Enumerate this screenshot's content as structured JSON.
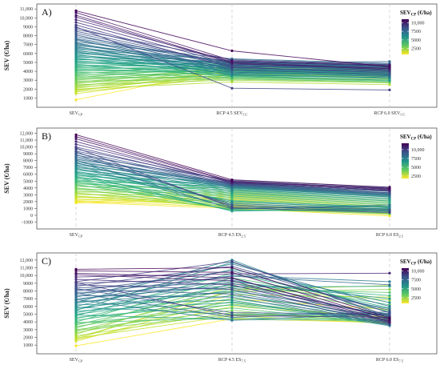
{
  "chart_data": [
    {
      "type": "line",
      "panel_label": "A)",
      "ylabel": "SEV (€/ha)",
      "x_categories": [
        {
          "main": "SEV",
          "sub": "CP",
          "over": false
        },
        {
          "main": "RCP 4.5 ",
          "mainOver": "SEV",
          "sub": "CC",
          "over": true
        },
        {
          "main": "RCP 6.0 ",
          "mainOver": "SEV",
          "sub": "CC",
          "over": true
        }
      ],
      "yticks": [
        1000,
        2000,
        3000,
        4000,
        5000,
        6000,
        7000,
        8000,
        9000,
        10000,
        11000
      ],
      "ytick_labels": [
        "1000",
        "2000",
        "3000",
        "4000",
        "5000",
        "6000",
        "7000",
        "8000",
        "9000",
        "10,000",
        "11,000"
      ],
      "ylim": [
        500,
        11200
      ],
      "legend": {
        "title_main": "SEV",
        "title_sub": "CP",
        "title_unit": " (€/ha)",
        "ticks": [
          10000,
          7500,
          5000,
          2500
        ],
        "tick_labels": [
          "10,000",
          "7500",
          "5000",
          "2500"
        ],
        "range": [
          800,
          11000
        ],
        "position": "top-right"
      },
      "series": [
        [
          10800,
          6300,
          4500
        ],
        [
          10600,
          5200,
          4700
        ],
        [
          10300,
          5000,
          4300
        ],
        [
          10100,
          4900,
          4200
        ],
        [
          9800,
          5100,
          4600
        ],
        [
          9500,
          4800,
          4400
        ],
        [
          9200,
          4400,
          4000
        ],
        [
          9000,
          2100,
          1900
        ],
        [
          8900,
          4600,
          4100
        ],
        [
          8700,
          5300,
          4800
        ],
        [
          8500,
          4700,
          4300
        ],
        [
          8300,
          4500,
          3800
        ],
        [
          8100,
          4200,
          3600
        ],
        [
          7900,
          5000,
          4500
        ],
        [
          7700,
          4900,
          5100
        ],
        [
          7600,
          4300,
          3900
        ],
        [
          7500,
          4100,
          3700
        ],
        [
          7300,
          5400,
          4900
        ],
        [
          7200,
          3900,
          3400
        ],
        [
          7100,
          4600,
          4200
        ],
        [
          7000,
          4400,
          4800
        ],
        [
          6900,
          5100,
          4600
        ],
        [
          6800,
          3800,
          3500
        ],
        [
          6700,
          4700,
          4300
        ],
        [
          6600,
          4200,
          3800
        ],
        [
          6500,
          5200,
          4700
        ],
        [
          6400,
          3600,
          3300
        ],
        [
          6300,
          4800,
          4500
        ],
        [
          6200,
          4000,
          3600
        ],
        [
          6100,
          4400,
          4000
        ],
        [
          6000,
          5000,
          4600
        ],
        [
          5900,
          3700,
          3200
        ],
        [
          5800,
          4600,
          4200
        ],
        [
          5700,
          4200,
          3900
        ],
        [
          5600,
          4900,
          4500
        ],
        [
          5500,
          3500,
          3000
        ],
        [
          5400,
          4300,
          4000
        ],
        [
          5300,
          5100,
          4600
        ],
        [
          5200,
          3900,
          3600
        ],
        [
          5100,
          4600,
          4300
        ],
        [
          5000,
          4100,
          3700
        ],
        [
          4900,
          4800,
          4400
        ],
        [
          4800,
          3400,
          3000
        ],
        [
          4700,
          4400,
          4100
        ],
        [
          4600,
          3800,
          3500
        ],
        [
          4500,
          5000,
          4700
        ],
        [
          4400,
          4200,
          3900
        ],
        [
          4300,
          3600,
          3200
        ],
        [
          4200,
          4700,
          4400
        ],
        [
          4100,
          3900,
          3700
        ],
        [
          4000,
          4500,
          4200
        ],
        [
          3900,
          3300,
          2900
        ],
        [
          3800,
          4100,
          3800
        ],
        [
          3700,
          4800,
          4500
        ],
        [
          3600,
          3700,
          3400
        ],
        [
          3500,
          4300,
          4000
        ],
        [
          3400,
          3200,
          2800
        ],
        [
          3300,
          4600,
          4300
        ],
        [
          3200,
          4000,
          3700
        ],
        [
          3100,
          3500,
          3300
        ],
        [
          3000,
          4400,
          4100
        ],
        [
          2900,
          3100,
          2800
        ],
        [
          2800,
          4200,
          3900
        ],
        [
          2700,
          3600,
          3400
        ],
        [
          2600,
          4500,
          4200
        ],
        [
          2500,
          3000,
          2700
        ],
        [
          2400,
          3900,
          3600
        ],
        [
          2300,
          4300,
          4100
        ],
        [
          2200,
          3400,
          3100
        ],
        [
          2100,
          4100,
          3800
        ],
        [
          2000,
          2800,
          2500
        ],
        [
          1900,
          3700,
          3500
        ],
        [
          1800,
          4000,
          3800
        ],
        [
          1700,
          3300,
          3000
        ],
        [
          1500,
          3600,
          3300
        ],
        [
          800,
          4300,
          3500
        ]
      ]
    },
    {
      "type": "line",
      "panel_label": "B)",
      "ylabel": "SEV (€/ha)",
      "x_categories": [
        {
          "main": "SEV",
          "sub": "CP",
          "over": false
        },
        {
          "main": "RCP 4.5 ES",
          "sub": "2.5",
          "over": false
        },
        {
          "main": "RCP 6.0 ES",
          "sub": "2.5",
          "over": false
        }
      ],
      "yticks": [
        -1000,
        0,
        1000,
        2000,
        3000,
        4000,
        5000,
        6000,
        7000,
        8000,
        9000,
        10000,
        11000,
        12000
      ],
      "ytick_labels": [
        "-1000",
        "0",
        "1000",
        "2000",
        "3000",
        "4000",
        "5000",
        "6000",
        "7000",
        "8000",
        "9000",
        "10,000",
        "11,000",
        "12,000"
      ],
      "ylim": [
        -1300,
        12300
      ],
      "legend": {
        "title_main": "SEV",
        "title_sub": "CP",
        "title_unit": " (€/ha)",
        "ticks": [
          10000,
          7500,
          5000,
          2500
        ],
        "tick_labels": [
          "10,000",
          "7500",
          "5000",
          "2500"
        ],
        "range": [
          1800,
          11800
        ],
        "position": "top-right"
      },
      "series": [
        [
          11800,
          5200,
          4100
        ],
        [
          11500,
          5000,
          3900
        ],
        [
          11200,
          4900,
          3800
        ],
        [
          10800,
          4700,
          3700
        ],
        [
          10400,
          4800,
          3600
        ],
        [
          10000,
          4600,
          3500
        ],
        [
          9700,
          4900,
          4000
        ],
        [
          9400,
          4500,
          3300
        ],
        [
          9100,
          4400,
          3200
        ],
        [
          8800,
          5100,
          4100
        ],
        [
          8600,
          4300,
          3100
        ],
        [
          8400,
          4200,
          3000
        ],
        [
          8200,
          4700,
          3700
        ],
        [
          8000,
          4100,
          2900
        ],
        [
          7800,
          4500,
          3500
        ],
        [
          7600,
          4000,
          2800
        ],
        [
          7400,
          4800,
          3900
        ],
        [
          7200,
          3800,
          2700
        ],
        [
          7000,
          4300,
          3300
        ],
        [
          6800,
          3600,
          2500
        ],
        [
          6600,
          4600,
          3700
        ],
        [
          6400,
          3400,
          2300
        ],
        [
          6200,
          4100,
          3100
        ],
        [
          6000,
          3200,
          2100
        ],
        [
          5800,
          4400,
          3500
        ],
        [
          5600,
          3000,
          1900
        ],
        [
          5400,
          3900,
          2900
        ],
        [
          5200,
          2800,
          1700
        ],
        [
          5000,
          4200,
          3300
        ],
        [
          4800,
          2600,
          1500
        ],
        [
          4600,
          3700,
          2700
        ],
        [
          4400,
          2400,
          1300
        ],
        [
          4200,
          4000,
          3100
        ],
        [
          4000,
          2200,
          1100
        ],
        [
          3800,
          3500,
          2500
        ],
        [
          3600,
          2000,
          900
        ],
        [
          3400,
          3300,
          2300
        ],
        [
          3200,
          1800,
          700
        ],
        [
          3000,
          3100,
          2100
        ],
        [
          2800,
          1600,
          500
        ],
        [
          2600,
          2900,
          1900
        ],
        [
          2400,
          1400,
          300
        ],
        [
          2200,
          2700,
          1700
        ],
        [
          2100,
          1200,
          100
        ],
        [
          2000,
          2500,
          1500
        ],
        [
          1900,
          1000,
          -100
        ],
        [
          1800,
          2300,
          1300
        ],
        [
          8900,
          1500,
          800
        ],
        [
          9300,
          1300,
          600
        ],
        [
          9900,
          1100,
          400
        ],
        [
          7700,
          1700,
          900
        ],
        [
          6900,
          1900,
          1100
        ],
        [
          6300,
          2100,
          1200
        ],
        [
          5700,
          1500,
          700
        ],
        [
          5100,
          1300,
          500
        ],
        [
          4500,
          1100,
          300
        ],
        [
          3900,
          900,
          200
        ],
        [
          3300,
          1000,
          600
        ],
        [
          2700,
          1300,
          900
        ],
        [
          6100,
          600,
          1000
        ],
        [
          5500,
          700,
          800
        ],
        [
          4900,
          800,
          600
        ],
        [
          7300,
          1000,
          1300
        ],
        [
          8100,
          900,
          1500
        ]
      ]
    },
    {
      "type": "line",
      "panel_label": "C)",
      "ylabel": "SEV (€/ha)",
      "x_categories": [
        {
          "main": "SEV",
          "sub": "CP",
          "over": false
        },
        {
          "main": "RCP 4.5 ES",
          "sub": "7.5",
          "over": false
        },
        {
          "main": "RCP 6.0 ES",
          "sub": "7.5",
          "over": false
        }
      ],
      "yticks": [
        1000,
        2000,
        3000,
        4000,
        5000,
        6000,
        7000,
        8000,
        9000,
        10000,
        11000,
        12000
      ],
      "ytick_labels": [
        "1000",
        "2000",
        "3000",
        "4000",
        "5000",
        "6000",
        "7000",
        "8000",
        "9000",
        "10,000",
        "11,000",
        "12,000"
      ],
      "ylim": [
        500,
        12500
      ],
      "legend": {
        "title_main": "SEV",
        "title_sub": "CP",
        "title_unit": " (€/ha)",
        "ticks": [
          10000,
          7500,
          5000,
          2500
        ],
        "tick_labels": [
          "10,000",
          "7500",
          "5000",
          "2500"
        ],
        "range": [
          900,
          10800
        ],
        "position": "top-right"
      },
      "series": [
        [
          10800,
          11000,
          4500
        ],
        [
          10600,
          10400,
          4300
        ],
        [
          10300,
          9700,
          4100
        ],
        [
          10100,
          9300,
          4000
        ],
        [
          9800,
          10200,
          10300
        ],
        [
          9500,
          8800,
          3900
        ],
        [
          9200,
          11800,
          4700
        ],
        [
          9000,
          9600,
          4400
        ],
        [
          8800,
          8200,
          3800
        ],
        [
          8600,
          11200,
          5200
        ],
        [
          8400,
          9000,
          4600
        ],
        [
          8200,
          7600,
          3700
        ],
        [
          8000,
          10600,
          5500
        ],
        [
          7800,
          8400,
          4200
        ],
        [
          7600,
          9900,
          8800
        ],
        [
          7400,
          7200,
          3600
        ],
        [
          7200,
          11500,
          6000
        ],
        [
          7000,
          8700,
          4800
        ],
        [
          6800,
          10000,
          9200
        ],
        [
          6600,
          7800,
          4100
        ],
        [
          6400,
          9400,
          5700
        ],
        [
          6200,
          6800,
          3500
        ],
        [
          6000,
          10800,
          6500
        ],
        [
          5800,
          8000,
          5000
        ],
        [
          5600,
          9200,
          7000
        ],
        [
          5400,
          6500,
          4000
        ],
        [
          5200,
          8500,
          8600
        ],
        [
          5000,
          7400,
          4700
        ],
        [
          4800,
          10300,
          5800
        ],
        [
          4600,
          6200,
          3900
        ],
        [
          4400,
          8900,
          7400
        ],
        [
          4200,
          7000,
          4400
        ],
        [
          4000,
          9700,
          6200
        ],
        [
          3800,
          5800,
          3800
        ],
        [
          3600,
          8300,
          7800
        ],
        [
          3400,
          6600,
          4300
        ],
        [
          3200,
          9000,
          5400
        ],
        [
          3000,
          5500,
          3700
        ],
        [
          2800,
          7900,
          8200
        ],
        [
          2600,
          6300,
          4500
        ],
        [
          2400,
          8600,
          6800
        ],
        [
          2200,
          5200,
          4000
        ],
        [
          2000,
          7500,
          7200
        ],
        [
          1900,
          4800,
          3800
        ],
        [
          1800,
          8100,
          8700
        ],
        [
          1700,
          6000,
          4600
        ],
        [
          1500,
          7000,
          5600
        ],
        [
          900,
          4400,
          3900
        ],
        [
          6900,
          4200,
          5100
        ],
        [
          7700,
          4600,
          5300
        ],
        [
          5900,
          5000,
          4900
        ],
        [
          4900,
          4300,
          4200
        ],
        [
          8300,
          5200,
          5000
        ],
        [
          9100,
          4800,
          4600
        ],
        [
          3900,
          4500,
          4400
        ],
        [
          2900,
          4900,
          4700
        ],
        [
          6500,
          12000,
          4500
        ],
        [
          5500,
          11700,
          5200
        ]
      ]
    }
  ]
}
